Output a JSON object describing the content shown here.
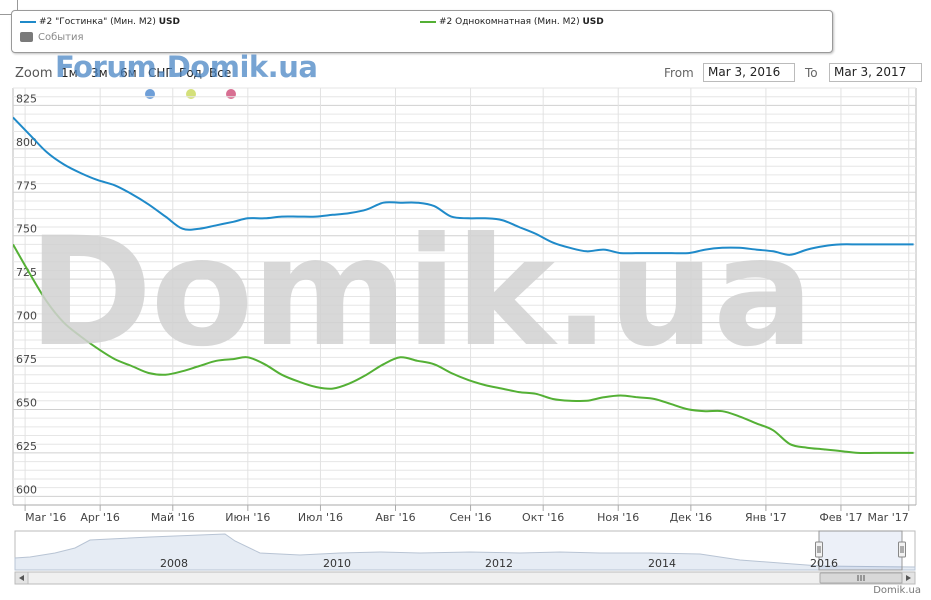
{
  "legend": {
    "series1_label": "#2 \"Гостинка\" (Мин. М2)",
    "series1_unit": "USD",
    "series2_label": "#2 Однокомнатная (Мин. М2)",
    "series2_unit": "USD",
    "events_label": "События"
  },
  "toolbar": {
    "zoom_label": "Zoom",
    "zoom_buttons": [
      "1м",
      "3м",
      "6м",
      "СНГ",
      "Год",
      "Все"
    ],
    "from_label": "From",
    "from_value": "Mar 3, 2016",
    "to_label": "To",
    "to_value": "Mar 3, 2017"
  },
  "watermarks": {
    "top": "Forum.Domik.ua",
    "big": "Domik.ua"
  },
  "event_colors": [
    "#6f9fd8",
    "#d4e07a",
    "#d86f92"
  ],
  "credit": "Domik.ua",
  "chart_data": {
    "type": "line",
    "title": "",
    "xlabel": "",
    "ylabel": "",
    "x_tick_labels": [
      "Mar '16",
      "Apr '16",
      "Май '16",
      "Июн '16",
      "Июл '16",
      "Авг '16",
      "Сен '16",
      "Окт '16",
      "Ноя '16",
      "Дек '16",
      "Янв '17",
      "Фев '17",
      "Mar '17"
    ],
    "ylim": [
      595,
      835
    ],
    "y_ticks": [
      600,
      625,
      650,
      675,
      700,
      725,
      750,
      775,
      800,
      825
    ],
    "grid": true,
    "legend_position": "top",
    "series": [
      {
        "name": "#2 \"Гостинка\" (Мин. М2) USD",
        "color": "#1f8ac9",
        "x": [
          "2016-02-25",
          "2016-03-03",
          "2016-03-10",
          "2016-03-17",
          "2016-03-24",
          "2016-03-31",
          "2016-04-07",
          "2016-04-14",
          "2016-04-21",
          "2016-04-28",
          "2016-05-05",
          "2016-05-12",
          "2016-05-19",
          "2016-05-26",
          "2016-06-01",
          "2016-06-08",
          "2016-06-15",
          "2016-06-22",
          "2016-06-29",
          "2016-07-06",
          "2016-07-13",
          "2016-07-20",
          "2016-07-27",
          "2016-08-03",
          "2016-08-10",
          "2016-08-17",
          "2016-08-24",
          "2016-08-31",
          "2016-09-07",
          "2016-09-14",
          "2016-09-21",
          "2016-09-28",
          "2016-10-05",
          "2016-10-12",
          "2016-10-19",
          "2016-10-26",
          "2016-11-02",
          "2016-11-09",
          "2016-11-16",
          "2016-11-23",
          "2016-11-30",
          "2016-12-07",
          "2016-12-14",
          "2016-12-21",
          "2016-12-28",
          "2017-01-04",
          "2017-01-11",
          "2017-01-18",
          "2017-01-25",
          "2017-02-01",
          "2017-02-08",
          "2017-02-15",
          "2017-02-22",
          "2017-03-01",
          "2017-03-03"
        ],
        "values": [
          818,
          808,
          798,
          791,
          786,
          782,
          779,
          774,
          768,
          761,
          754,
          754,
          756,
          758,
          760,
          760,
          761,
          761,
          761,
          762,
          763,
          765,
          769,
          769,
          769,
          767,
          761,
          760,
          760,
          759,
          755,
          751,
          746,
          743,
          741,
          742,
          740,
          740,
          740,
          740,
          740,
          742,
          743,
          743,
          742,
          741,
          739,
          742,
          744,
          745,
          745,
          745,
          745,
          745,
          745
        ]
      },
      {
        "name": "#2 Однокомнатная (Мин. М2) USD",
        "color": "#54b035",
        "x": [
          "2016-02-25",
          "2016-03-03",
          "2016-03-10",
          "2016-03-17",
          "2016-03-24",
          "2016-03-31",
          "2016-04-07",
          "2016-04-14",
          "2016-04-21",
          "2016-04-28",
          "2016-05-05",
          "2016-05-12",
          "2016-05-19",
          "2016-05-26",
          "2016-06-01",
          "2016-06-08",
          "2016-06-15",
          "2016-06-22",
          "2016-06-29",
          "2016-07-06",
          "2016-07-13",
          "2016-07-20",
          "2016-07-27",
          "2016-08-03",
          "2016-08-10",
          "2016-08-17",
          "2016-08-24",
          "2016-08-31",
          "2016-09-07",
          "2016-09-14",
          "2016-09-21",
          "2016-09-28",
          "2016-10-05",
          "2016-10-12",
          "2016-10-19",
          "2016-10-26",
          "2016-11-02",
          "2016-11-09",
          "2016-11-16",
          "2016-11-23",
          "2016-11-30",
          "2016-12-07",
          "2016-12-14",
          "2016-12-21",
          "2016-12-28",
          "2017-01-04",
          "2017-01-11",
          "2017-01-18",
          "2017-01-25",
          "2017-02-01",
          "2017-02-08",
          "2017-02-15",
          "2017-02-22",
          "2017-03-01",
          "2017-03-03"
        ],
        "values": [
          745,
          728,
          712,
          700,
          692,
          685,
          679,
          675,
          671,
          670,
          672,
          675,
          678,
          679,
          680,
          676,
          670,
          666,
          663,
          662,
          665,
          670,
          676,
          680,
          678,
          676,
          671,
          667,
          664,
          662,
          660,
          659,
          656,
          655,
          655,
          657,
          658,
          657,
          656,
          653,
          650,
          649,
          649,
          646,
          642,
          638,
          630,
          628,
          627,
          626,
          625,
          625,
          625,
          625,
          625
        ]
      }
    ],
    "navigator": {
      "x_labels": [
        "2008",
        "2010",
        "2012",
        "2014",
        "2016"
      ]
    }
  }
}
